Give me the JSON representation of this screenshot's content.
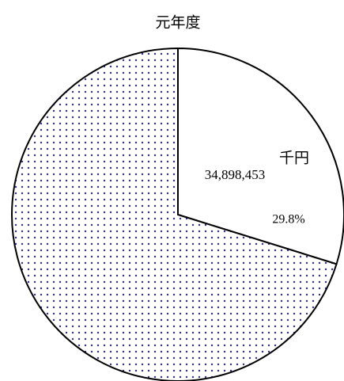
{
  "chart_data": {
    "type": "pie",
    "title": "元年度",
    "categories": [
      null,
      null
    ],
    "values": [
      29.8,
      70.2
    ],
    "value_labels": [
      "29.8%",
      null
    ],
    "colors": [
      "#ffffff",
      "#2f2f8f"
    ],
    "patterns": [
      null,
      "dots"
    ],
    "annotations": [
      "34,898,453",
      "千円"
    ]
  }
}
